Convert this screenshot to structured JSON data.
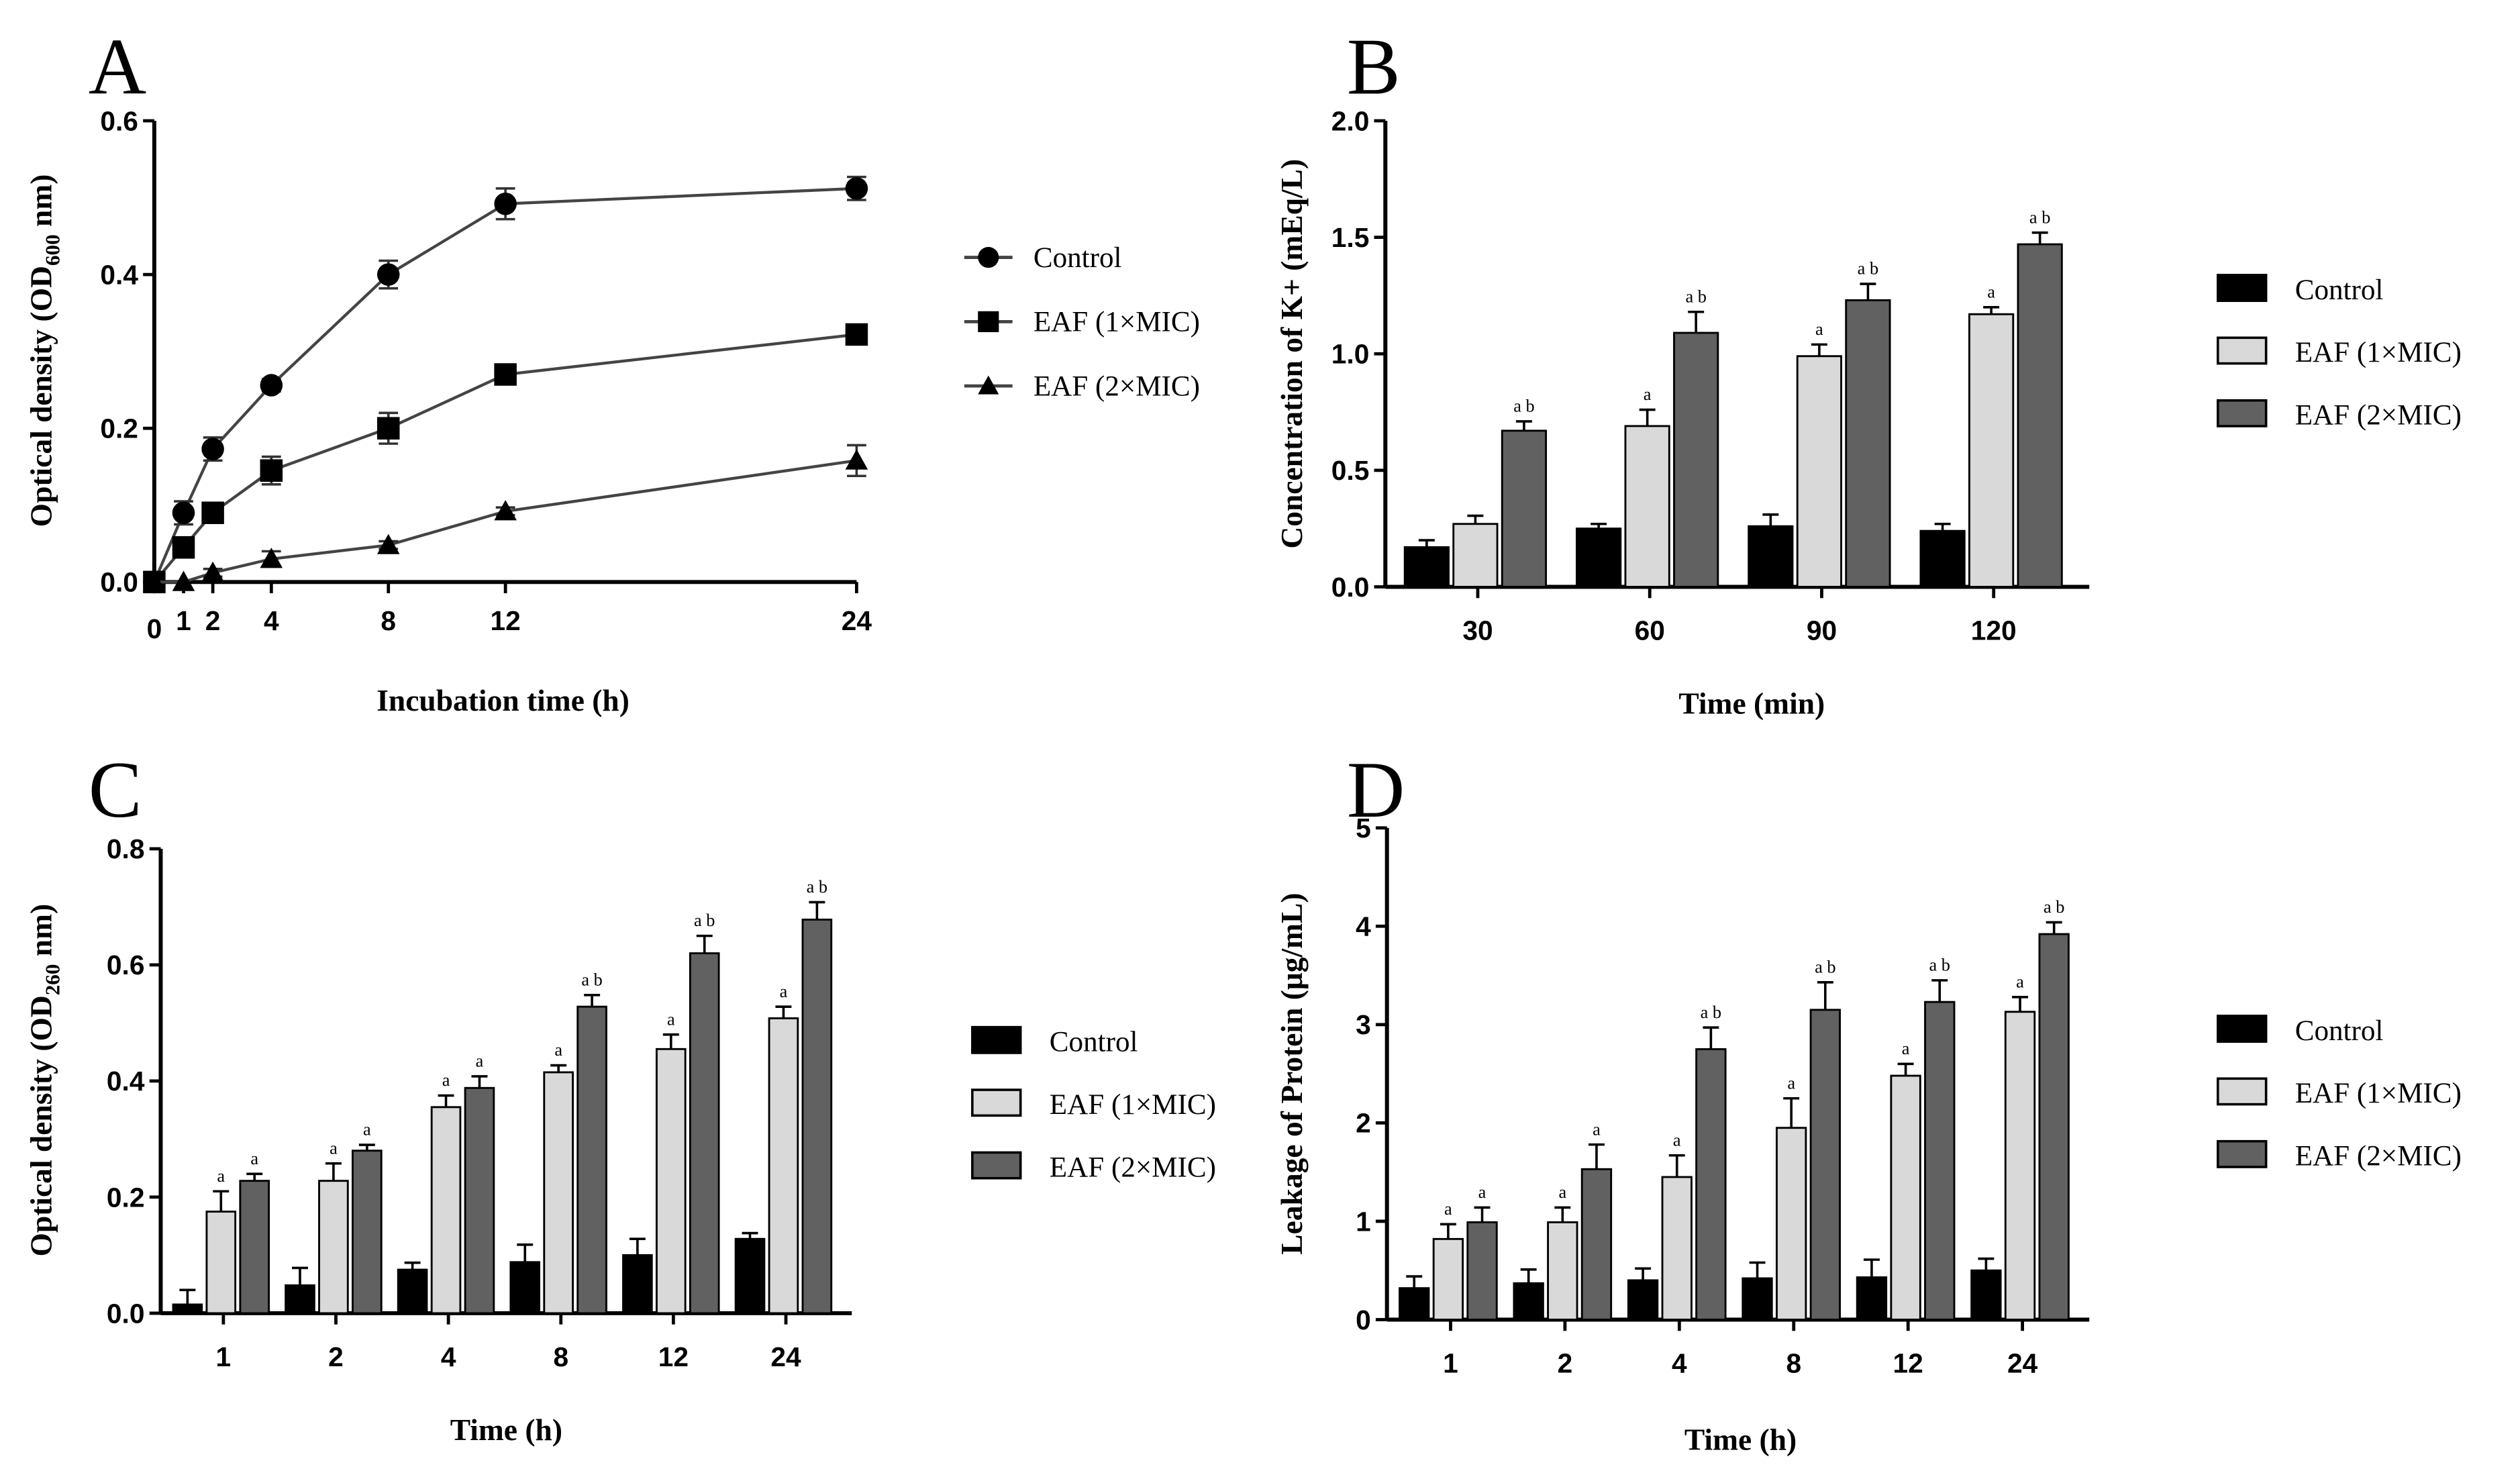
{
  "colors": {
    "control": "#000000",
    "eaf1": "#d9d9d9",
    "eaf2": "#616161",
    "line": "#444444"
  },
  "chart_data": [
    {
      "panel": "A",
      "type": "line",
      "xlabel": "Incubation time (h)",
      "ylabel": "Optical density (OD600 nm)",
      "x": [
        0,
        1,
        2,
        4,
        8,
        12,
        24
      ],
      "xlim": [
        0,
        24
      ],
      "ylim": [
        0,
        0.6
      ],
      "yticks": [
        "0.0",
        "0.2",
        "0.4",
        "0.6"
      ],
      "xticks": [
        "0",
        "1",
        "2",
        "4",
        "8",
        "12",
        "24"
      ],
      "legend": "right",
      "series": [
        {
          "name": "Control",
          "marker": "circle",
          "values": [
            0,
            0.09,
            0.173,
            0.256,
            0.4,
            0.492,
            0.512
          ],
          "errors": [
            0,
            0.015,
            0.015,
            0.008,
            0.018,
            0.02,
            0.015
          ]
        },
        {
          "name": "EAF (1×MIC)",
          "marker": "square",
          "values": [
            0,
            0.045,
            0.09,
            0.145,
            0.2,
            0.27,
            0.322
          ],
          "errors": [
            0,
            0.012,
            0.008,
            0.018,
            0.02,
            0.012,
            0.008
          ]
        },
        {
          "name": "EAF (2×MIC)",
          "marker": "triangle",
          "values": [
            0,
            0,
            0.012,
            0.03,
            0.048,
            0.092,
            0.158
          ],
          "errors": [
            0,
            0,
            0.005,
            0.01,
            0.005,
            0.005,
            0.02
          ]
        }
      ]
    },
    {
      "panel": "B",
      "type": "bar",
      "xlabel": "Time (min)",
      "ylabel": "Concentration of K+ (mEq/L)",
      "categories": [
        "30",
        "60",
        "90",
        "120"
      ],
      "ylim": [
        0,
        2.0
      ],
      "yticks": [
        "0.0",
        "0.5",
        "1.0",
        "1.5",
        "2.0"
      ],
      "legend": "right",
      "series": [
        {
          "name": "Control",
          "values": [
            0.17,
            0.25,
            0.26,
            0.24
          ],
          "errors": [
            0.03,
            0.02,
            0.05,
            0.03
          ],
          "annotations": [
            "",
            "",
            "",
            ""
          ]
        },
        {
          "name": "EAF (1×MIC)",
          "values": [
            0.27,
            0.69,
            0.99,
            1.17
          ],
          "errors": [
            0.035,
            0.07,
            0.05,
            0.03
          ],
          "annotations": [
            "",
            "a",
            "a",
            "a"
          ]
        },
        {
          "name": "EAF (2×MIC)",
          "values": [
            0.67,
            1.09,
            1.23,
            1.47
          ],
          "errors": [
            0.04,
            0.09,
            0.07,
            0.05
          ],
          "annotations": [
            "a b",
            "a b",
            "a b",
            "a b"
          ]
        }
      ]
    },
    {
      "panel": "C",
      "type": "bar",
      "xlabel": "Time (h)",
      "ylabel": "Optical density (OD260 nm)",
      "categories": [
        "1",
        "2",
        "4",
        "8",
        "12",
        "24"
      ],
      "ylim": [
        0,
        0.8
      ],
      "yticks": [
        "0.0",
        "0.2",
        "0.4",
        "0.6",
        "0.8"
      ],
      "legend": "right",
      "series": [
        {
          "name": "Control",
          "values": [
            0.015,
            0.048,
            0.075,
            0.088,
            0.1,
            0.128
          ],
          "errors": [
            0.025,
            0.03,
            0.012,
            0.03,
            0.028,
            0.01
          ],
          "annotations": [
            "",
            "",
            "",
            "",
            "",
            ""
          ]
        },
        {
          "name": "EAF (1×MIC)",
          "values": [
            0.175,
            0.228,
            0.355,
            0.415,
            0.455,
            0.508
          ],
          "errors": [
            0.035,
            0.03,
            0.02,
            0.012,
            0.025,
            0.02
          ],
          "annotations": [
            "a",
            "a",
            "a",
            "a",
            "a",
            "a"
          ]
        },
        {
          "name": "EAF (2×MIC)",
          "values": [
            0.228,
            0.28,
            0.388,
            0.528,
            0.62,
            0.678
          ],
          "errors": [
            0.012,
            0.01,
            0.02,
            0.02,
            0.03,
            0.03
          ],
          "annotations": [
            "a",
            "a",
            "a",
            "a b",
            "a b",
            "a b"
          ]
        }
      ]
    },
    {
      "panel": "D",
      "type": "bar",
      "xlabel": "Time (h)",
      "ylabel": "Leakage of Protein (μg/mL)",
      "categories": [
        "1",
        "2",
        "4",
        "8",
        "12",
        "24"
      ],
      "ylim": [
        0,
        5
      ],
      "yticks": [
        "0",
        "1",
        "2",
        "3",
        "4",
        "5"
      ],
      "legend": "right",
      "series": [
        {
          "name": "Control",
          "values": [
            0.32,
            0.37,
            0.4,
            0.42,
            0.43,
            0.5
          ],
          "errors": [
            0.12,
            0.14,
            0.12,
            0.16,
            0.18,
            0.12
          ],
          "annotations": [
            "",
            "",
            "",
            "",
            "",
            ""
          ]
        },
        {
          "name": "EAF (1×MIC)",
          "values": [
            0.82,
            0.99,
            1.45,
            1.95,
            2.48,
            3.13
          ],
          "errors": [
            0.15,
            0.15,
            0.22,
            0.3,
            0.12,
            0.15
          ],
          "annotations": [
            "a",
            "a",
            "a",
            "a",
            "a",
            "a"
          ]
        },
        {
          "name": "EAF (2×MIC)",
          "values": [
            0.99,
            1.53,
            2.75,
            3.15,
            3.23,
            3.92
          ],
          "errors": [
            0.15,
            0.25,
            0.22,
            0.28,
            0.22,
            0.12
          ],
          "annotations": [
            "a",
            "a",
            "a b",
            "a b",
            "a b",
            "a b"
          ]
        }
      ]
    }
  ]
}
